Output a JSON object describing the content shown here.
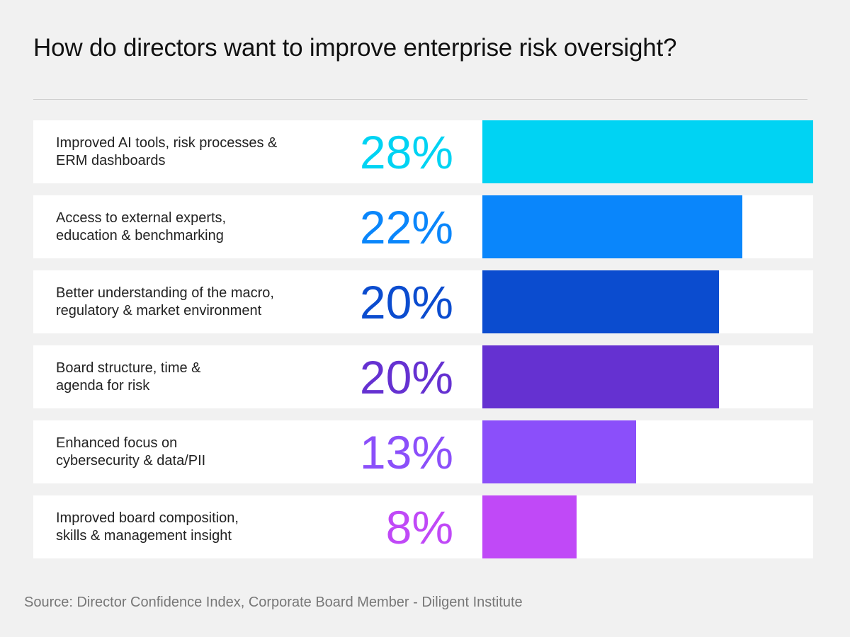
{
  "chart_data": {
    "type": "bar",
    "orientation": "horizontal",
    "title": "How do directors want to improve enterprise risk oversight?",
    "categories": [
      "Improved AI tools, risk processes & ERM dashboards",
      "Access to external experts, education & benchmarking",
      "Better understanding of the macro, regulatory & market environment",
      "Board structure, time & agenda for risk",
      "Enhanced focus on cybersecurity & data/PII",
      "Improved board composition, skills & management insight"
    ],
    "label_lines": [
      [
        "Improved AI tools, risk processes &",
        "ERM dashboards"
      ],
      [
        "Access to external experts,",
        "education & benchmarking"
      ],
      [
        "Better understanding of the macro,",
        "regulatory & market environment"
      ],
      [
        "Board structure, time &",
        "agenda for risk"
      ],
      [
        "Enhanced focus on",
        "cybersecurity & data/PII"
      ],
      [
        "Improved board composition,",
        "skills & management insight"
      ]
    ],
    "values": [
      28,
      22,
      20,
      20,
      13,
      8
    ],
    "data_labels": [
      "28%",
      "22%",
      "20%",
      "20%",
      "13%",
      "8%"
    ],
    "colors": [
      "#00d3f3",
      "#0a86fb",
      "#0b4ccf",
      "#6531d1",
      "#8b4ffa",
      "#c049f7"
    ],
    "xlim": [
      0,
      28
    ],
    "unit": "%",
    "grid": false,
    "source": "Source: Director Confidence Index, Corporate Board Member - Diligent Institute"
  }
}
